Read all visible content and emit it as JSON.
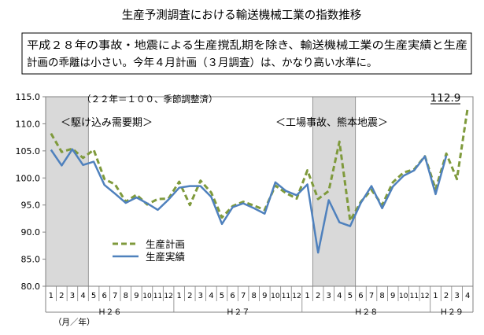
{
  "chart_data": {
    "type": "line",
    "title": "生産予測調査における輸送機械工業の指数推移",
    "summary_lines": [
      "平成２８年の事故・地震による生産撹乱期を除き、輸送機械工業の生産実績と生産",
      "計画の乖離は小さい。今年４月計画（３月調査）は、かなり高い水準に。"
    ],
    "note": "（２２年＝１００、季節調整済）",
    "unit_label": "（月／年）",
    "latest_value_label": "112.9",
    "ylim": [
      80.0,
      115.0
    ],
    "y_ticks": [
      "80.0",
      "85.0",
      "90.0",
      "95.0",
      "100.0",
      "105.0",
      "110.0",
      "115.0"
    ],
    "x_month_labels": [
      "1",
      "2",
      "3",
      "4",
      "5",
      "6",
      "7",
      "8",
      "9",
      "10",
      "11",
      "12",
      "1",
      "2",
      "3",
      "4",
      "5",
      "6",
      "7",
      "8",
      "9",
      "10",
      "11",
      "12",
      "1",
      "2",
      "3",
      "4",
      "5",
      "6",
      "7",
      "8",
      "9",
      "10",
      "11",
      "12",
      "1",
      "2",
      "3",
      "4"
    ],
    "year_groups": [
      {
        "label": "Ｈ２６",
        "start": 0,
        "count": 12
      },
      {
        "label": "Ｈ２７",
        "start": 12,
        "count": 12
      },
      {
        "label": "Ｈ２８",
        "start": 24,
        "count": 12
      },
      {
        "label": "Ｈ２９",
        "start": 36,
        "count": 4
      }
    ],
    "shaded_periods": [
      {
        "start": 0,
        "end": 3,
        "label": "＜駆け込み需要期＞"
      },
      {
        "start": 25,
        "end": 28,
        "label": "＜工場事故、熊本地震＞"
      }
    ],
    "series": [
      {
        "name": "生産計画",
        "color": "#7f9a3c",
        "style": "dashed",
        "values": [
          108.2,
          104.8,
          105.4,
          103.7,
          105.2,
          99.8,
          98.8,
          95.6,
          96.9,
          95.1,
          96.1,
          96.2,
          99.3,
          95.0,
          99.5,
          97.3,
          92.7,
          94.8,
          95.6,
          94.9,
          94.1,
          98.6,
          97.2,
          96.2,
          101.4,
          96.1,
          97.6,
          106.7,
          92.1,
          95.6,
          97.8,
          95.0,
          99.2,
          101.0,
          101.6,
          104.0,
          97.9,
          104.5,
          99.8,
          112.9
        ]
      },
      {
        "name": "生産実績",
        "color": "#4f81bd",
        "style": "solid",
        "values": [
          105.2,
          102.3,
          105.3,
          102.4,
          103.0,
          98.7,
          97.1,
          95.4,
          96.4,
          95.3,
          94.1,
          96.0,
          98.2,
          98.5,
          98.5,
          96.5,
          91.5,
          94.6,
          95.3,
          94.4,
          93.4,
          99.2,
          97.6,
          96.8,
          98.8,
          86.2,
          95.9,
          91.8,
          91.1,
          95.4,
          98.5,
          94.4,
          98.4,
          100.4,
          101.4,
          104.0,
          97.0,
          104.1,
          null,
          null
        ]
      }
    ],
    "legend_position": "lower-left inside plot",
    "grid": false
  }
}
